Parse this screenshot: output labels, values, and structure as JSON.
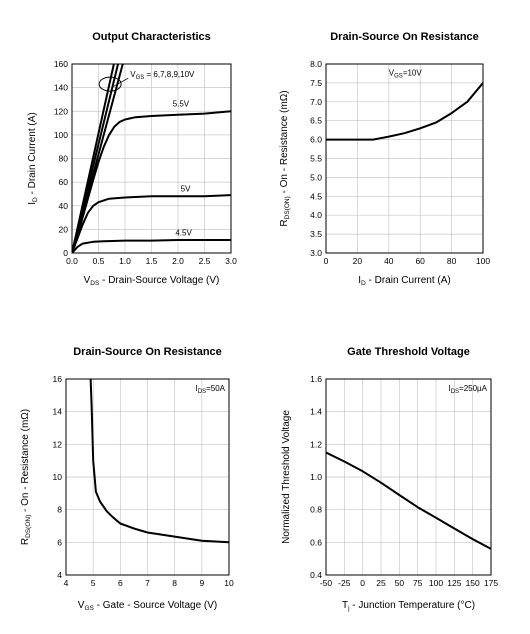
{
  "chart_data": [
    {
      "type": "line",
      "title": "Output Characteristics",
      "xlabel": "V DS - Drain-Source Voltage (V)",
      "xlabel_main": "V",
      "xlabel_sub": "DS",
      "xlabel_rest": " - Drain-Source Voltage (V)",
      "ylabel_main": "I",
      "ylabel_sub": "D",
      "ylabel_rest": " - Drain Current (A)",
      "xlim": [
        0,
        3.0
      ],
      "ylim": [
        0,
        160
      ],
      "xticks": [
        "0.0",
        "0.5",
        "1.0",
        "1.5",
        "2.0",
        "2.5",
        "3.0"
      ],
      "yticks": [
        "0",
        "20",
        "40",
        "60",
        "80",
        "100",
        "120",
        "140",
        "160"
      ],
      "grid": true,
      "series": [
        {
          "name": "VGS = 6,7,8,9,10V (a)",
          "x": [
            0,
            0.8
          ],
          "y": [
            0,
            162
          ]
        },
        {
          "name": "VGS = 6,7,8,9,10V (b)",
          "x": [
            0,
            0.88
          ],
          "y": [
            0,
            162
          ]
        },
        {
          "name": "VGS = 6,7,8,9,10V (c)",
          "x": [
            0,
            0.97
          ],
          "y": [
            0,
            162
          ]
        },
        {
          "name": "5.5V",
          "x": [
            0,
            0.1,
            0.2,
            0.3,
            0.4,
            0.5,
            0.6,
            0.7,
            0.8,
            0.9,
            1.0,
            1.2,
            1.5,
            2.0,
            2.5,
            3.0
          ],
          "y": [
            0,
            14,
            30,
            46,
            62,
            77,
            90,
            100,
            107,
            111,
            113,
            115,
            116,
            117,
            118,
            120
          ]
        },
        {
          "name": "5V",
          "x": [
            0,
            0.1,
            0.2,
            0.3,
            0.4,
            0.5,
            0.7,
            1.0,
            1.5,
            2.0,
            2.5,
            3.0
          ],
          "y": [
            0,
            12,
            24,
            34,
            40,
            43,
            46,
            47,
            48,
            48,
            48,
            49
          ]
        },
        {
          "name": "4.5V",
          "x": [
            0,
            0.1,
            0.2,
            0.4,
            0.6,
            1.0,
            1.5,
            2.0,
            2.5,
            3.0
          ],
          "y": [
            0,
            5,
            8,
            9.5,
            10,
            10.5,
            10.5,
            11,
            11,
            11
          ]
        }
      ],
      "annotations": [
        {
          "text_main": "V",
          "text_sub": "GS",
          "text_rest": " = 6,7,8,9,10V",
          "x": 1.1,
          "y": 149
        },
        {
          "text": "5.5V",
          "x": 1.9,
          "y": 124
        },
        {
          "text": "5V",
          "x": 2.05,
          "y": 52
        },
        {
          "text": "4.5V",
          "x": 1.95,
          "y": 15
        }
      ]
    },
    {
      "type": "line",
      "title": "Drain-Source On Resistance",
      "xlabel": "ID - Drain Current (A)",
      "xlabel_main": "I",
      "xlabel_sub": "D",
      "xlabel_rest": " - Drain Current (A)",
      "ylabel_main": "R",
      "ylabel_sub": "DS(ON)",
      "ylabel_rest": " - On - Resistance (mΩ)",
      "xlim": [
        0,
        100
      ],
      "ylim": [
        3.0,
        8.0
      ],
      "xticks": [
        "0",
        "20",
        "40",
        "60",
        "80",
        "100"
      ],
      "yticks": [
        "3.0",
        "3.5",
        "4.0",
        "4.5",
        "5.0",
        "5.5",
        "6.0",
        "6.5",
        "7.0",
        "7.5",
        "8.0"
      ],
      "grid": true,
      "series": [
        {
          "name": "VGS=10V",
          "x": [
            0,
            10,
            20,
            30,
            40,
            50,
            60,
            70,
            80,
            90,
            100
          ],
          "y": [
            6.0,
            6.0,
            6.0,
            6.0,
            6.08,
            6.17,
            6.3,
            6.45,
            6.7,
            7.0,
            7.5
          ]
        }
      ],
      "annotations": [
        {
          "text_main": "V",
          "text_sub": "GS",
          "text_rest": "=10V",
          "x": 40,
          "y": 7.7
        }
      ]
    },
    {
      "type": "line",
      "title": "Drain-Source On Resistance",
      "xlabel": "VGS - Gate - Source Voltage (V)",
      "xlabel_main": "V",
      "xlabel_sub": "GS",
      "xlabel_rest": " - Gate - Source Voltage (V)",
      "ylabel_main": "R",
      "ylabel_sub": "DS(ON)",
      "ylabel_rest": " - On - Resistance (mΩ)",
      "xlim": [
        4,
        10
      ],
      "ylim": [
        4,
        16
      ],
      "xticks": [
        "4",
        "5",
        "6",
        "7",
        "8",
        "9",
        "10"
      ],
      "yticks": [
        "4",
        "6",
        "8",
        "10",
        "12",
        "14",
        "16"
      ],
      "grid": true,
      "series": [
        {
          "name": "IDS=50A",
          "x": [
            4.9,
            4.95,
            5.0,
            5.1,
            5.25,
            5.5,
            5.75,
            6.0,
            6.5,
            7.0,
            8.0,
            9.0,
            10.0
          ],
          "y": [
            16.2,
            14.0,
            11.0,
            9.1,
            8.5,
            7.9,
            7.5,
            7.15,
            6.85,
            6.6,
            6.35,
            6.1,
            6.0
          ]
        }
      ],
      "annotations": [
        {
          "text_main": "I",
          "text_sub": "DS",
          "text_rest": "=50A"
        }
      ]
    },
    {
      "type": "line",
      "title": "Gate Threshold Voltage",
      "xlabel": "Tj - Junction Temperature (°C)",
      "xlabel_main": "T",
      "xlabel_sub": "j",
      "xlabel_rest": " - Junction Temperature (°C)",
      "ylabel_main": "Normalized Threshold Voltage",
      "ylabel_sub": "",
      "ylabel_rest": "",
      "xlim": [
        -50,
        175
      ],
      "ylim": [
        0.4,
        1.6
      ],
      "xticks": [
        "-50",
        "-25",
        "0",
        "25",
        "50",
        "75",
        "100",
        "125",
        "150",
        "175"
      ],
      "yticks": [
        "0.4",
        "0.6",
        "0.8",
        "1.0",
        "1.2",
        "1.4",
        "1.6"
      ],
      "grid": true,
      "series": [
        {
          "name": "IDS=250µA",
          "x": [
            -50,
            -25,
            0,
            25,
            50,
            75,
            100,
            125,
            150,
            175
          ],
          "y": [
            1.15,
            1.095,
            1.035,
            0.965,
            0.89,
            0.815,
            0.75,
            0.685,
            0.62,
            0.56
          ]
        }
      ],
      "annotations": [
        {
          "text_main": "I",
          "text_sub": "DS",
          "text_rest": "=250µA"
        }
      ]
    }
  ]
}
